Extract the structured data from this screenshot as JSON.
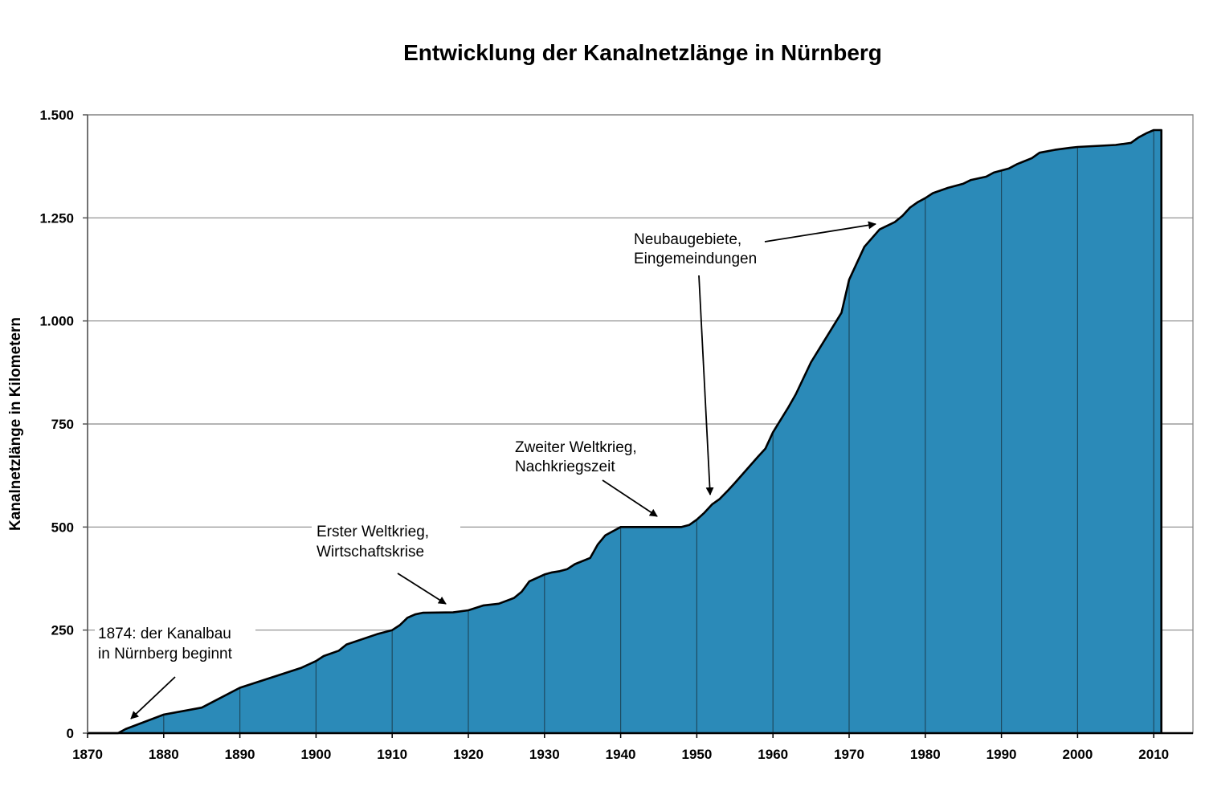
{
  "chart_data": {
    "type": "area",
    "title": "Entwicklung der Kanalnetzlänge in Nürnberg",
    "xlabel": "",
    "ylabel": "Kanalnetzlänge in Kilometern",
    "xlim": [
      1870,
      2015
    ],
    "ylim": [
      0,
      1500
    ],
    "grid": "horizontal",
    "fill_color": "#2b8ab8",
    "x_ticks": [
      "1870",
      "1880",
      "1890",
      "1900",
      "1910",
      "1920",
      "1930",
      "1940",
      "1950",
      "1960",
      "1970",
      "1980",
      "1990",
      "2000",
      "2010"
    ],
    "y_ticks": [
      {
        "value": 0,
        "label": "0"
      },
      {
        "value": 250,
        "label": "250"
      },
      {
        "value": 500,
        "label": "500"
      },
      {
        "value": 750,
        "label": "750"
      },
      {
        "value": 1000,
        "label": "1.000"
      },
      {
        "value": 1250,
        "label": "1.250"
      },
      {
        "value": 1500,
        "label": "1.500"
      }
    ],
    "x": [
      1870,
      1874,
      1875,
      1880,
      1885,
      1890,
      1895,
      1898,
      1900,
      1901,
      1903,
      1904,
      1908,
      1910,
      1911,
      1912,
      1913,
      1914,
      1918,
      1920,
      1922,
      1924,
      1926,
      1927,
      1928,
      1930,
      1931,
      1932,
      1933,
      1934,
      1936,
      1937,
      1938,
      1940,
      1948,
      1949,
      1950,
      1951,
      1952,
      1953,
      1954,
      1955,
      1958,
      1959,
      1960,
      1962,
      1963,
      1965,
      1967,
      1969,
      1970,
      1972,
      1974,
      1976,
      1977,
      1978,
      1979,
      1980,
      1981,
      1983,
      1985,
      1986,
      1988,
      1989,
      1991,
      1992,
      1994,
      1995,
      1997,
      1999,
      2000,
      2005,
      2007,
      2008,
      2009,
      2010,
      2011
    ],
    "y": [
      0,
      0,
      10,
      45,
      62,
      110,
      140,
      158,
      175,
      187,
      200,
      215,
      240,
      250,
      262,
      280,
      288,
      292,
      293,
      298,
      310,
      314,
      328,
      343,
      368,
      385,
      390,
      393,
      398,
      410,
      425,
      458,
      480,
      500,
      500,
      505,
      518,
      535,
      555,
      568,
      587,
      607,
      670,
      690,
      730,
      790,
      822,
      900,
      960,
      1020,
      1100,
      1180,
      1222,
      1240,
      1255,
      1275,
      1288,
      1298,
      1310,
      1323,
      1333,
      1342,
      1350,
      1360,
      1370,
      1380,
      1395,
      1408,
      1415,
      1420,
      1422,
      1427,
      1432,
      1445,
      1455,
      1463,
      1463
    ],
    "annotations": [
      {
        "lines": [
          "1874: der Kanalbau",
          "in Nürnberg beginnt"
        ]
      },
      {
        "lines": [
          "Erster Weltkrieg,",
          "Wirtschaftskrise"
        ]
      },
      {
        "lines": [
          "Zweiter Weltkrieg,",
          "Nachkriegszeit"
        ]
      },
      {
        "lines": [
          "Neubaugebiete,",
          "Eingemeindungen"
        ]
      }
    ]
  }
}
